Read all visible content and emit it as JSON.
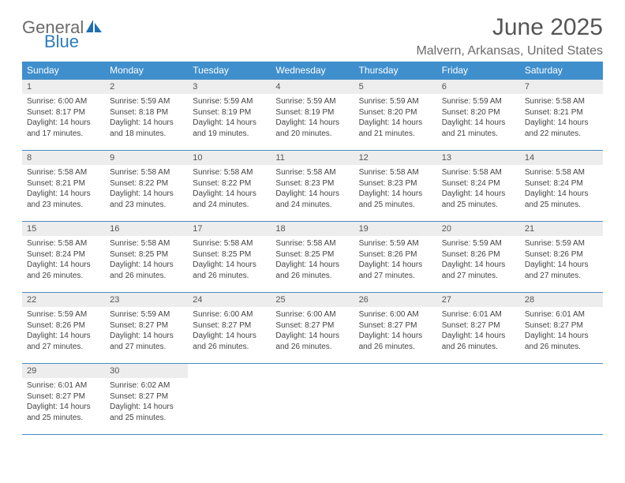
{
  "logo": {
    "word1": "General",
    "word2": "Blue"
  },
  "title": "June 2025",
  "location": "Malvern, Arkansas, United States",
  "colors": {
    "header_bg": "#3f8fcd",
    "header_text": "#ffffff",
    "row_border": "#4a8bc2",
    "daynum_bg": "#ededed",
    "daynum_text": "#555555",
    "body_text": "#444444",
    "title_text": "#555555",
    "location_text": "#6b6b6b",
    "logo_gray": "#6b6b6b",
    "logo_blue": "#2f7bbf",
    "page_bg": "#ffffff"
  },
  "typography": {
    "title_fontsize": 30,
    "location_fontsize": 16,
    "header_fontsize": 12,
    "daynum_fontsize": 11,
    "cell_fontsize": 10
  },
  "weekdays": [
    "Sunday",
    "Monday",
    "Tuesday",
    "Wednesday",
    "Thursday",
    "Friday",
    "Saturday"
  ],
  "days": [
    {
      "n": 1,
      "sunrise": "6:00 AM",
      "sunset": "8:17 PM",
      "daylight": "14 hours and 17 minutes."
    },
    {
      "n": 2,
      "sunrise": "5:59 AM",
      "sunset": "8:18 PM",
      "daylight": "14 hours and 18 minutes."
    },
    {
      "n": 3,
      "sunrise": "5:59 AM",
      "sunset": "8:19 PM",
      "daylight": "14 hours and 19 minutes."
    },
    {
      "n": 4,
      "sunrise": "5:59 AM",
      "sunset": "8:19 PM",
      "daylight": "14 hours and 20 minutes."
    },
    {
      "n": 5,
      "sunrise": "5:59 AM",
      "sunset": "8:20 PM",
      "daylight": "14 hours and 21 minutes."
    },
    {
      "n": 6,
      "sunrise": "5:59 AM",
      "sunset": "8:20 PM",
      "daylight": "14 hours and 21 minutes."
    },
    {
      "n": 7,
      "sunrise": "5:58 AM",
      "sunset": "8:21 PM",
      "daylight": "14 hours and 22 minutes."
    },
    {
      "n": 8,
      "sunrise": "5:58 AM",
      "sunset": "8:21 PM",
      "daylight": "14 hours and 23 minutes."
    },
    {
      "n": 9,
      "sunrise": "5:58 AM",
      "sunset": "8:22 PM",
      "daylight": "14 hours and 23 minutes."
    },
    {
      "n": 10,
      "sunrise": "5:58 AM",
      "sunset": "8:22 PM",
      "daylight": "14 hours and 24 minutes."
    },
    {
      "n": 11,
      "sunrise": "5:58 AM",
      "sunset": "8:23 PM",
      "daylight": "14 hours and 24 minutes."
    },
    {
      "n": 12,
      "sunrise": "5:58 AM",
      "sunset": "8:23 PM",
      "daylight": "14 hours and 25 minutes."
    },
    {
      "n": 13,
      "sunrise": "5:58 AM",
      "sunset": "8:24 PM",
      "daylight": "14 hours and 25 minutes."
    },
    {
      "n": 14,
      "sunrise": "5:58 AM",
      "sunset": "8:24 PM",
      "daylight": "14 hours and 25 minutes."
    },
    {
      "n": 15,
      "sunrise": "5:58 AM",
      "sunset": "8:24 PM",
      "daylight": "14 hours and 26 minutes."
    },
    {
      "n": 16,
      "sunrise": "5:58 AM",
      "sunset": "8:25 PM",
      "daylight": "14 hours and 26 minutes."
    },
    {
      "n": 17,
      "sunrise": "5:58 AM",
      "sunset": "8:25 PM",
      "daylight": "14 hours and 26 minutes."
    },
    {
      "n": 18,
      "sunrise": "5:58 AM",
      "sunset": "8:25 PM",
      "daylight": "14 hours and 26 minutes."
    },
    {
      "n": 19,
      "sunrise": "5:59 AM",
      "sunset": "8:26 PM",
      "daylight": "14 hours and 27 minutes."
    },
    {
      "n": 20,
      "sunrise": "5:59 AM",
      "sunset": "8:26 PM",
      "daylight": "14 hours and 27 minutes."
    },
    {
      "n": 21,
      "sunrise": "5:59 AM",
      "sunset": "8:26 PM",
      "daylight": "14 hours and 27 minutes."
    },
    {
      "n": 22,
      "sunrise": "5:59 AM",
      "sunset": "8:26 PM",
      "daylight": "14 hours and 27 minutes."
    },
    {
      "n": 23,
      "sunrise": "5:59 AM",
      "sunset": "8:27 PM",
      "daylight": "14 hours and 27 minutes."
    },
    {
      "n": 24,
      "sunrise": "6:00 AM",
      "sunset": "8:27 PM",
      "daylight": "14 hours and 26 minutes."
    },
    {
      "n": 25,
      "sunrise": "6:00 AM",
      "sunset": "8:27 PM",
      "daylight": "14 hours and 26 minutes."
    },
    {
      "n": 26,
      "sunrise": "6:00 AM",
      "sunset": "8:27 PM",
      "daylight": "14 hours and 26 minutes."
    },
    {
      "n": 27,
      "sunrise": "6:01 AM",
      "sunset": "8:27 PM",
      "daylight": "14 hours and 26 minutes."
    },
    {
      "n": 28,
      "sunrise": "6:01 AM",
      "sunset": "8:27 PM",
      "daylight": "14 hours and 26 minutes."
    },
    {
      "n": 29,
      "sunrise": "6:01 AM",
      "sunset": "8:27 PM",
      "daylight": "14 hours and 25 minutes."
    },
    {
      "n": 30,
      "sunrise": "6:02 AM",
      "sunset": "8:27 PM",
      "daylight": "14 hours and 25 minutes."
    }
  ],
  "labels": {
    "sunrise": "Sunrise:",
    "sunset": "Sunset:",
    "daylight": "Daylight:"
  },
  "layout": {
    "first_weekday_index": 0,
    "total_cells": 35
  }
}
